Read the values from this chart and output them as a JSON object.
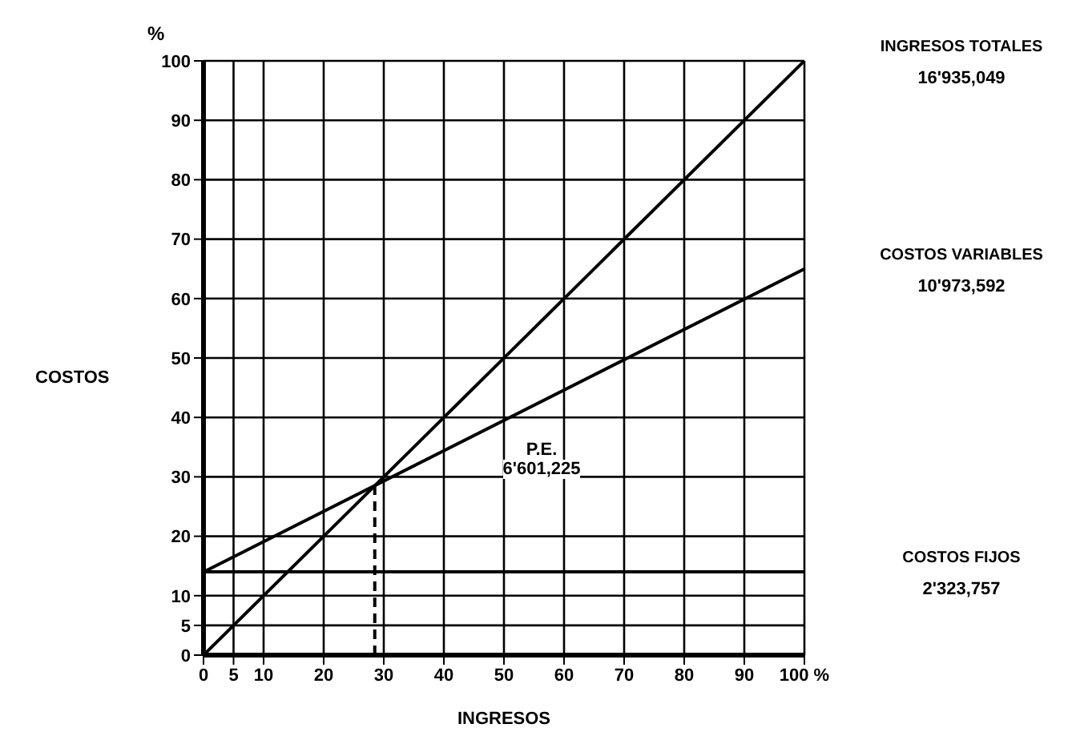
{
  "chart_data": {
    "type": "line",
    "xlabel": "INGRESOS",
    "ylabel": "COSTOS",
    "xlim": [
      0,
      100
    ],
    "ylim": [
      0,
      100
    ],
    "xticks": [
      0,
      5,
      10,
      20,
      30,
      40,
      50,
      60,
      70,
      80,
      90,
      {
        "value": 100,
        "label": "100 %"
      }
    ],
    "yticks": [
      0,
      5,
      10,
      20,
      30,
      40,
      50,
      60,
      70,
      80,
      90,
      100
    ],
    "grid": true,
    "legend": false,
    "marker": "none",
    "line_style": "solid",
    "series": [
      {
        "name": "INGRESOS TOTALES",
        "color": "#000000",
        "x": [
          0,
          100
        ],
        "values": [
          0,
          100
        ]
      },
      {
        "name": "COSTOS VARIABLES",
        "color": "#000000",
        "x": [
          0,
          100
        ],
        "values": [
          14,
          65
        ]
      },
      {
        "name": "COSTOS FIJOS",
        "color": "#000000",
        "x": [
          0,
          100
        ],
        "values": [
          14,
          14
        ]
      },
      {
        "color": "#000000",
        "x": [
          28.5,
          28.5
        ],
        "values": [
          0,
          29
        ],
        "line_style": "dashed"
      }
    ],
    "annotations": [
      "%",
      "16'935,049",
      "10'973,592",
      "2'323,757",
      "P.E.\n6'601,225"
    ]
  }
}
